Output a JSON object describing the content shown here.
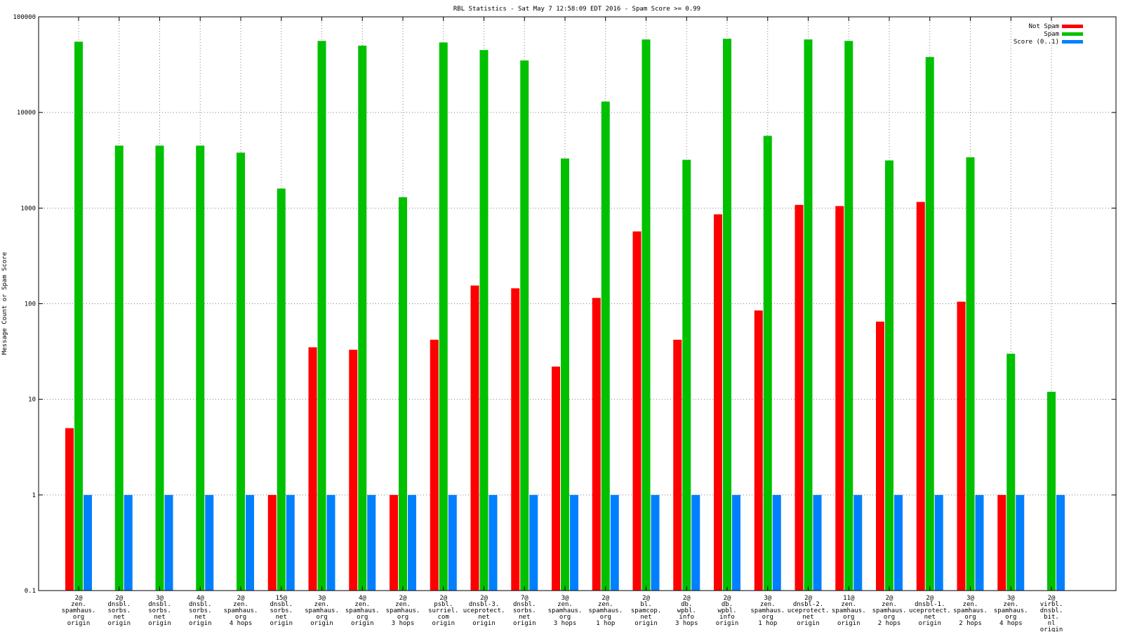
{
  "chart_data": {
    "type": "bar",
    "title": "RBL Statistics - Sat May  7 12:58:09 EDT 2016 - Spam Score >= 0.99",
    "xlabel": "",
    "ylabel": "Message Count or Spam Score",
    "y_scale": "log",
    "ylim": [
      0.1,
      100000
    ],
    "y_ticks": [
      "0.1",
      "1",
      "10",
      "100",
      "1000",
      "10000",
      "100000"
    ],
    "grid": true,
    "legend_position": "top-right",
    "categories": [
      [
        "2@",
        "zen.",
        "spamhaus.",
        "org",
        "origin"
      ],
      [
        "2@",
        "dnsbl.",
        "sorbs.",
        "net",
        "origin"
      ],
      [
        "3@",
        "dnsbl.",
        "sorbs.",
        "net",
        "origin"
      ],
      [
        "4@",
        "dnsbl.",
        "sorbs.",
        "net",
        "origin"
      ],
      [
        "2@",
        "zen.",
        "spamhaus.",
        "org",
        "4 hops"
      ],
      [
        "15@",
        "dnsbl.",
        "sorbs.",
        "net",
        "origin"
      ],
      [
        "3@",
        "zen.",
        "spamhaus.",
        "org",
        "origin"
      ],
      [
        "4@",
        "zen.",
        "spamhaus.",
        "org",
        "origin"
      ],
      [
        "2@",
        "zen.",
        "spamhaus.",
        "org",
        "3 hops"
      ],
      [
        "2@",
        "psbl.",
        "surriel.",
        "com",
        "origin"
      ],
      [
        "2@",
        "dnsbl-3.",
        "uceprotect.",
        "net",
        "origin"
      ],
      [
        "7@",
        "dnsbl.",
        "sorbs.",
        "net",
        "origin"
      ],
      [
        "3@",
        "zen.",
        "spamhaus.",
        "org",
        "3 hops"
      ],
      [
        "2@",
        "zen.",
        "spamhaus.",
        "org",
        "1 hop"
      ],
      [
        "2@",
        "bl.",
        "spamcop.",
        "net",
        "origin"
      ],
      [
        "2@",
        "db.",
        "wpbl.",
        "info",
        "3 hops"
      ],
      [
        "2@",
        "db.",
        "wpbl.",
        "info",
        "origin"
      ],
      [
        "3@",
        "zen.",
        "spamhaus.",
        "org",
        "1 hop"
      ],
      [
        "2@",
        "dnsbl-2.",
        "uceprotect.",
        "net",
        "origin"
      ],
      [
        "11@",
        "zen.",
        "spamhaus.",
        "org",
        "origin"
      ],
      [
        "2@",
        "zen.",
        "spamhaus.",
        "org",
        "2 hops"
      ],
      [
        "2@",
        "dnsbl-1.",
        "uceprotect.",
        "net",
        "origin"
      ],
      [
        "3@",
        "zen.",
        "spamhaus.",
        "org",
        "2 hops"
      ],
      [
        "3@",
        "zen.",
        "spamhaus.",
        "org",
        "4 hops"
      ],
      [
        "2@",
        "virbl.",
        "dnsbl.",
        "bit.",
        "nl",
        "origin"
      ]
    ],
    "series": [
      {
        "name": "Not Spam",
        "color": "#ff0000",
        "values": [
          5,
          null,
          null,
          null,
          null,
          1,
          35,
          33,
          1,
          42,
          155,
          145,
          22,
          115,
          570,
          42,
          860,
          85,
          1080,
          1050,
          65,
          1160,
          105,
          1,
          null
        ]
      },
      {
        "name": "Spam",
        "color": "#00c000",
        "values": [
          55000,
          4500,
          4500,
          4500,
          3800,
          1600,
          56000,
          50000,
          1300,
          54000,
          45000,
          35000,
          3300,
          13000,
          58000,
          3200,
          59000,
          5700,
          58000,
          56000,
          3150,
          38000,
          3400,
          30,
          12
        ]
      },
      {
        "name": "Score (0..1)",
        "color": "#0080ff",
        "values": [
          1,
          1,
          1,
          1,
          1,
          1,
          1,
          1,
          1,
          1,
          1,
          1,
          1,
          1,
          1,
          1,
          1,
          1,
          1,
          1,
          1,
          1,
          1,
          1,
          1
        ]
      }
    ]
  }
}
